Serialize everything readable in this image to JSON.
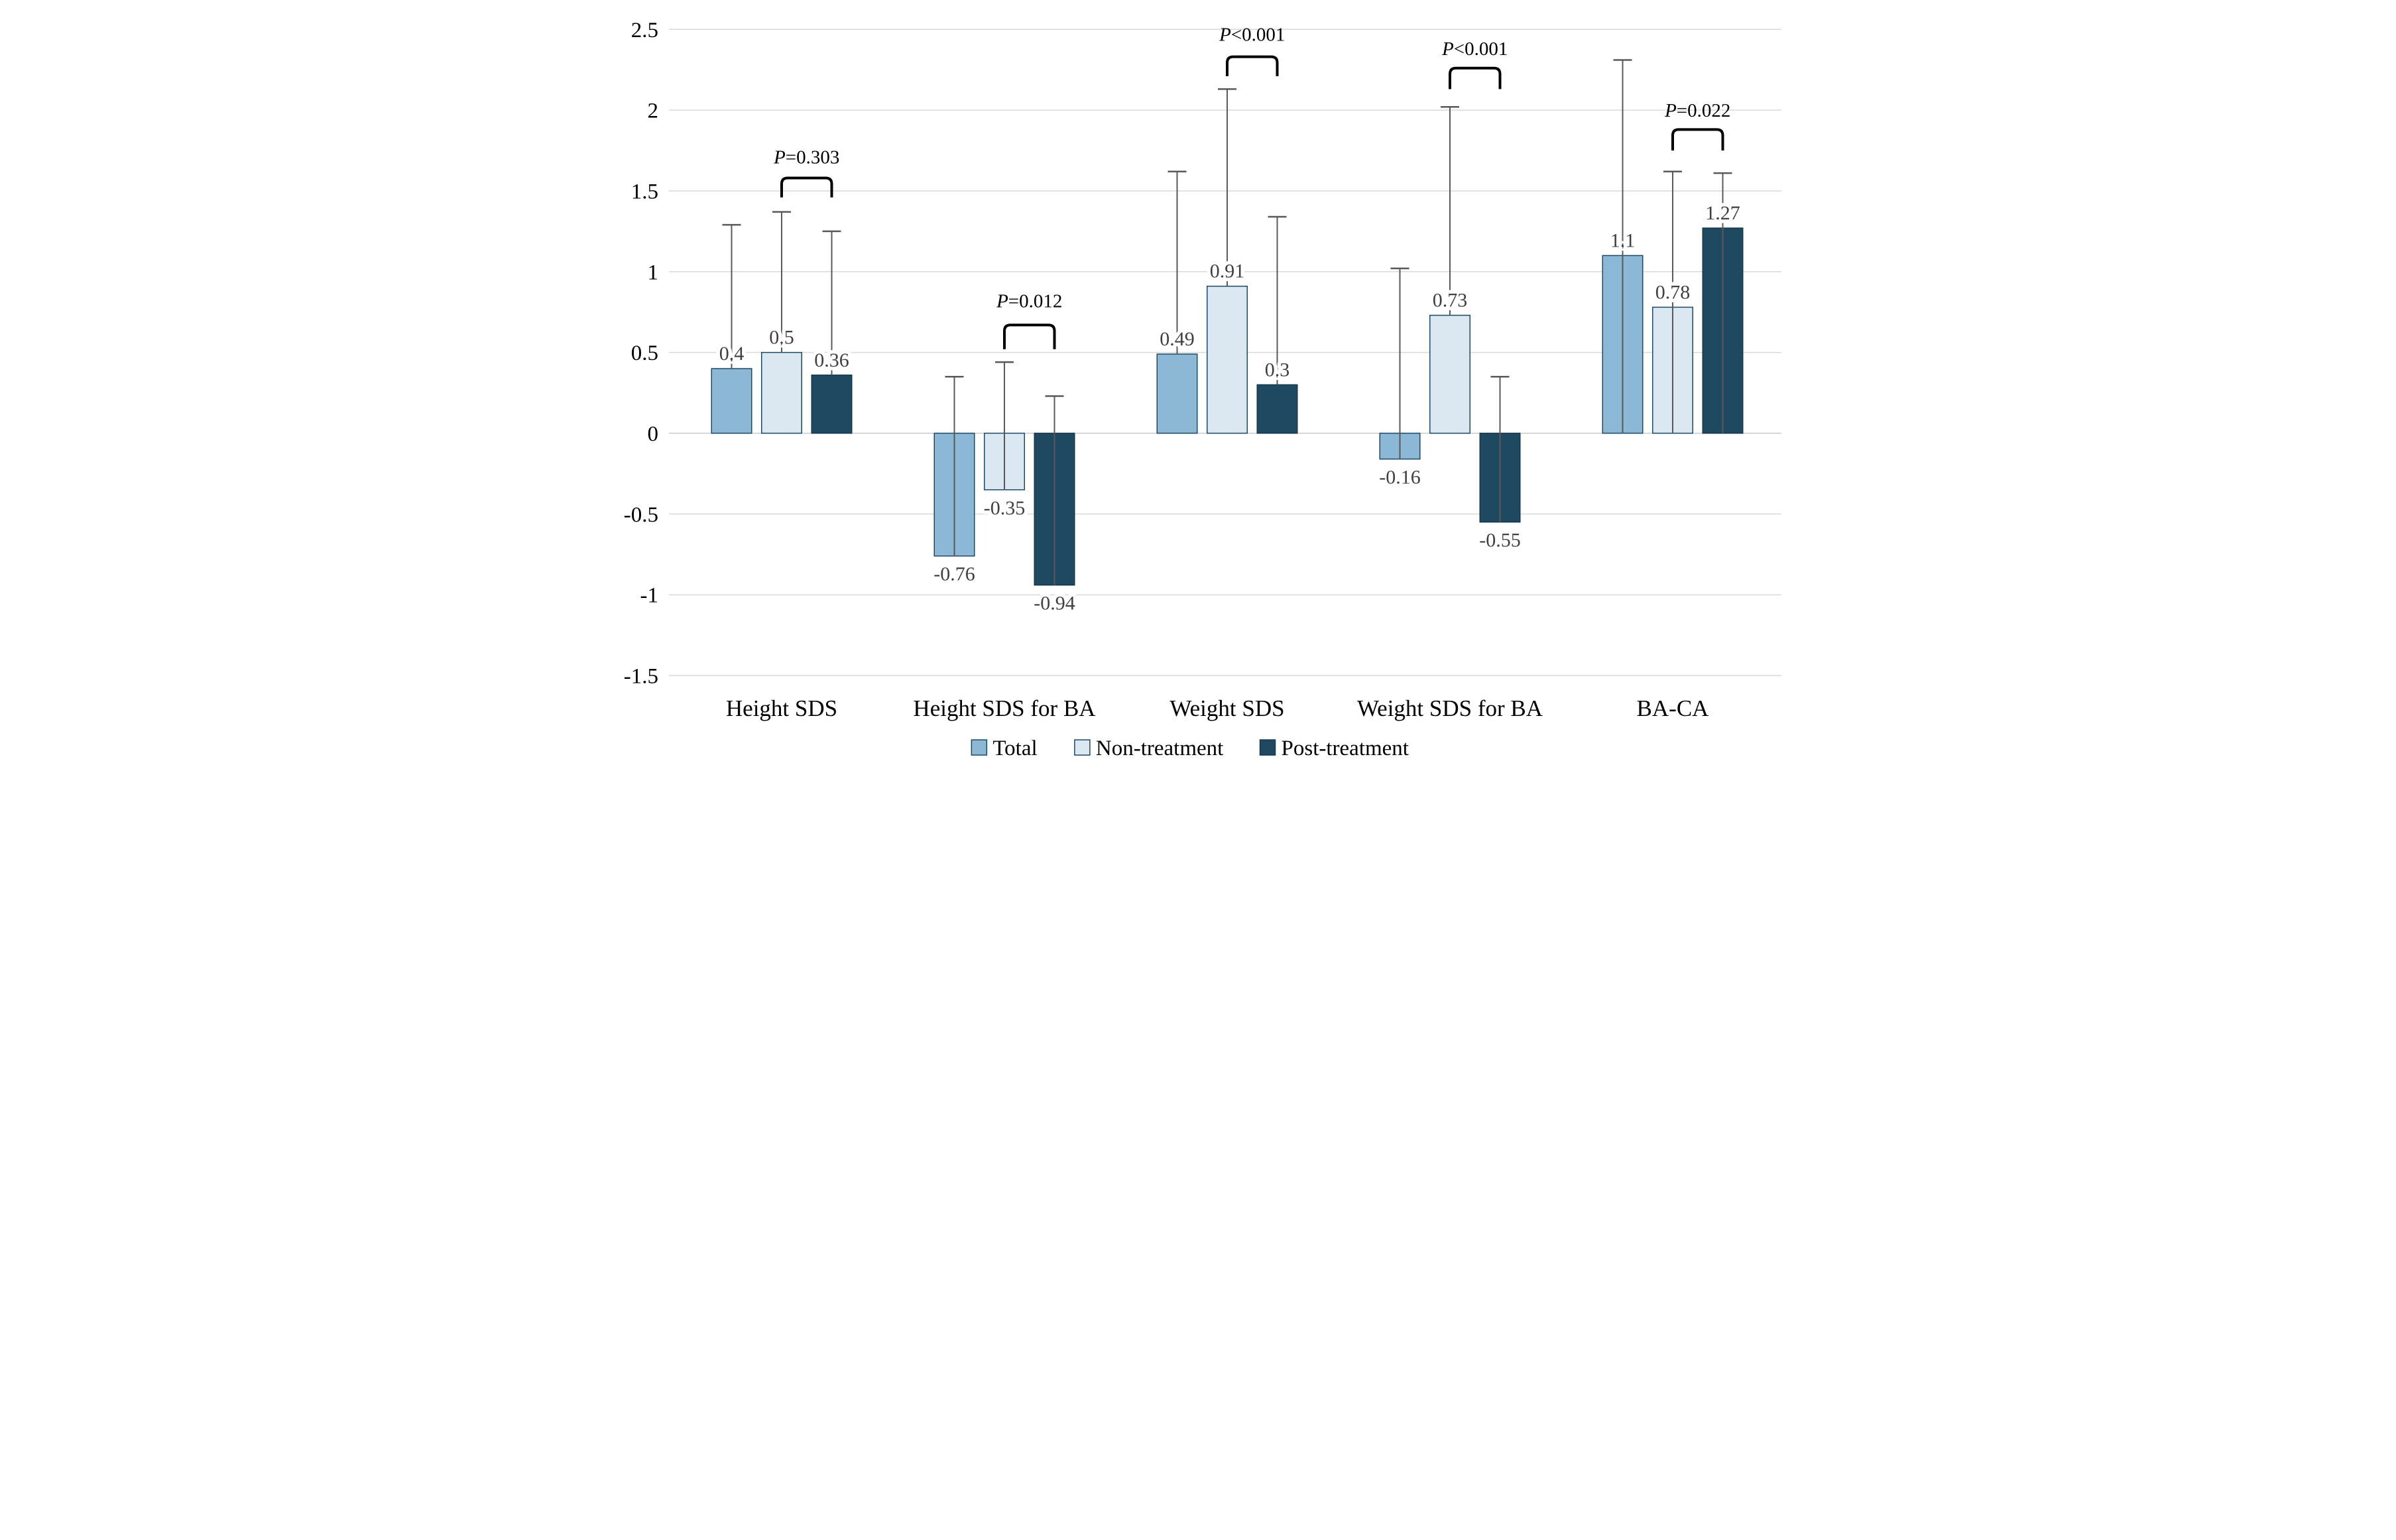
{
  "chart_data": {
    "type": "bar",
    "title": "",
    "xlabel": "",
    "ylabel": "",
    "background": "#FFFFFF",
    "ylim": [
      -1.5,
      2.5
    ],
    "grid": true,
    "legend_position": "bottom",
    "categories": [
      "Height SDS",
      "Height SDS for BA",
      "Weight SDS",
      "Weight SDS for BA",
      "BA-CA"
    ],
    "yticks": [
      {
        "v": 2.5,
        "label": "2.5"
      },
      {
        "v": 2,
        "label": "2"
      },
      {
        "v": 1.5,
        "label": "1.5"
      },
      {
        "v": 1,
        "label": "1"
      },
      {
        "v": 0.5,
        "label": "0.5"
      },
      {
        "v": 0,
        "label": "0"
      },
      {
        "v": -0.5,
        "label": "-0.5"
      },
      {
        "v": -1,
        "label": "-1"
      },
      {
        "v": -1.5,
        "label": "-1.5"
      }
    ],
    "series": [
      {
        "name": "Total",
        "fill": "#8CB8D5",
        "border": "#1C4A66",
        "values": [
          0.4,
          -0.76,
          0.49,
          -0.16,
          1.1
        ],
        "value_labels": [
          "0.4",
          "-0.76",
          "0.49",
          "-0.16",
          "1.1"
        ],
        "error_bar_top": [
          1.29,
          0.35,
          1.62,
          1.02,
          2.31
        ]
      },
      {
        "name": "Non-treatment",
        "fill": "#DBE8F1",
        "border": "#1C4A66",
        "values": [
          0.5,
          -0.35,
          0.91,
          0.73,
          0.78
        ],
        "value_labels": [
          "0.5",
          "-0.35",
          "0.91",
          "0.73",
          "0.78"
        ],
        "error_bar_top": [
          1.37,
          0.44,
          2.13,
          2.02,
          1.62
        ]
      },
      {
        "name": "Post-treatment",
        "fill": "#1F4961",
        "border": "#16384E",
        "values": [
          0.36,
          -0.94,
          0.3,
          -0.55,
          1.27
        ],
        "value_labels": [
          "0.36",
          "-0.94",
          "0.3",
          "-0.55",
          "1.27"
        ],
        "error_bar_top": [
          1.25,
          0.23,
          1.34,
          0.35,
          1.61
        ]
      }
    ],
    "whisker_through_bar_categories": [
      4
    ],
    "annotations": [
      {
        "category": 0,
        "p_prefix": "P",
        "p_rest": "=0.303",
        "text": "P=0.303",
        "connects": [
          "Non-treatment",
          "Post-treatment"
        ],
        "label_v": 1.67,
        "bracket_top_v": 1.58,
        "bracket_leg_v": 1.46
      },
      {
        "category": 1,
        "p_prefix": "P",
        "p_rest": "=0.012",
        "text": "P=0.012",
        "connects": [
          "Non-treatment",
          "Post-treatment"
        ],
        "label_v": 0.78,
        "bracket_top_v": 0.67,
        "bracket_leg_v": 0.52
      },
      {
        "category": 2,
        "p_prefix": "P",
        "p_rest": "<0.001",
        "text": "P<0.001",
        "connects": [
          "Non-treatment",
          "Post-treatment"
        ],
        "label_v": 2.43,
        "bracket_top_v": 2.33,
        "bracket_leg_v": 2.21
      },
      {
        "category": 3,
        "p_prefix": "P",
        "p_rest": "<0.001",
        "text": "P<0.001",
        "connects": [
          "Non-treatment",
          "Post-treatment"
        ],
        "label_v": 2.34,
        "bracket_top_v": 2.26,
        "bracket_leg_v": 2.13
      },
      {
        "category": 4,
        "p_prefix": "P",
        "p_rest": "=0.022",
        "text": "P=0.022",
        "connects": [
          "Non-treatment",
          "Post-treatment"
        ],
        "label_v": 1.96,
        "bracket_top_v": 1.88,
        "bracket_leg_v": 1.75
      }
    ],
    "legend": {
      "items": [
        {
          "label": "Total"
        },
        {
          "label": "Non-treatment"
        },
        {
          "label": "Post-treatment"
        }
      ]
    },
    "colors": {
      "gridline": "#D9D9D9",
      "zero_line": "#C9C9C9",
      "whisker": "#595959",
      "data_label": "#404040",
      "axis_text": "#000000",
      "annotation_text": "#000000",
      "bracket": "#000000"
    }
  }
}
